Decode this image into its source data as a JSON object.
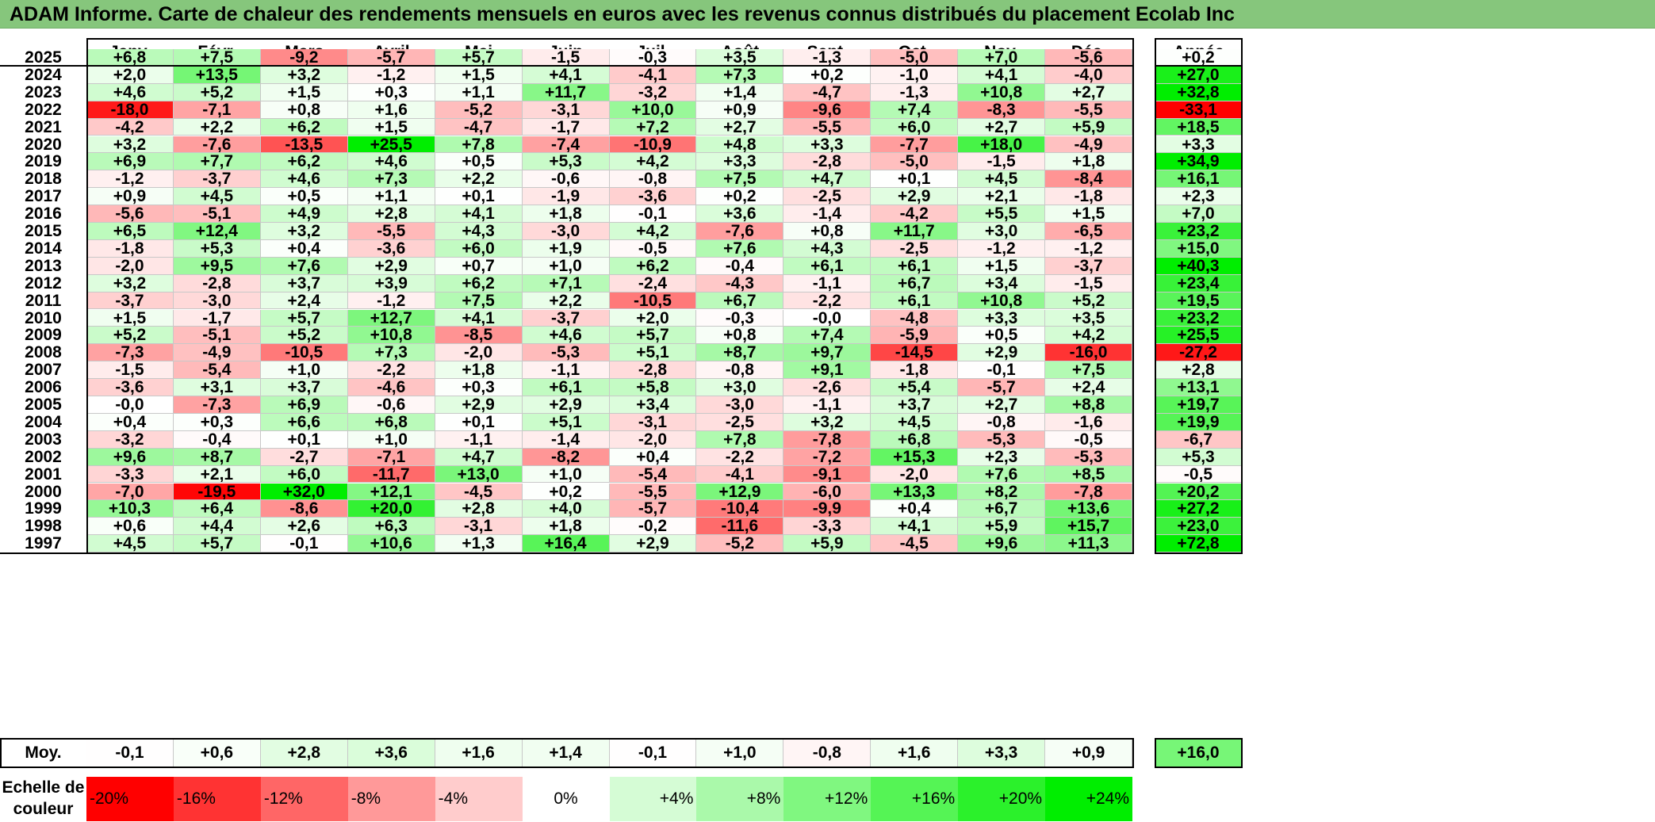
{
  "title": "ADAM Informe. Carte de chaleur des rendements mensuels en euros avec les revenus connus distribués du placement Ecolab Inc",
  "chart_data": {
    "type": "heatmap",
    "title": "ADAM Informe. Carte de chaleur des rendements mensuels en euros avec les revenus connus distribués du placement Ecolab Inc",
    "columns": [
      "Janv.",
      "Févr.",
      "Mars",
      "Avril",
      "Mai",
      "Juin",
      "Juil.",
      "Août",
      "Sept.",
      "Oct.",
      "Nov.",
      "Déc."
    ],
    "year_column": "Année",
    "rows": [
      {
        "year": "2025",
        "values": [
          "+6,8",
          "+7,5",
          "-9,2",
          "-5,7",
          "+5,7",
          "-1,5",
          "-0,3",
          "+3,5",
          "-1,3",
          "-5,0",
          "+7,0",
          "-5,6"
        ],
        "annual": "+0,2"
      },
      {
        "year": "2024",
        "values": [
          "+2,0",
          "+13,5",
          "+3,2",
          "-1,2",
          "+1,5",
          "+4,1",
          "-4,1",
          "+7,3",
          "+0,2",
          "-1,0",
          "+4,1",
          "-4,0"
        ],
        "annual": "+27,0"
      },
      {
        "year": "2023",
        "values": [
          "+4,6",
          "+5,2",
          "+1,5",
          "+0,3",
          "+1,1",
          "+11,7",
          "-3,2",
          "+1,4",
          "-4,7",
          "-1,3",
          "+10,8",
          "+2,7"
        ],
        "annual": "+32,8"
      },
      {
        "year": "2022",
        "values": [
          "-18,0",
          "-7,1",
          "+0,8",
          "+1,6",
          "-5,2",
          "-3,1",
          "+10,0",
          "+0,9",
          "-9,6",
          "+7,4",
          "-8,3",
          "-5,5"
        ],
        "annual": "-33,1"
      },
      {
        "year": "2021",
        "values": [
          "-4,2",
          "+2,2",
          "+6,2",
          "+1,5",
          "-4,7",
          "-1,7",
          "+7,2",
          "+2,7",
          "-5,5",
          "+6,0",
          "+2,7",
          "+5,9"
        ],
        "annual": "+18,5"
      },
      {
        "year": "2020",
        "values": [
          "+3,2",
          "-7,6",
          "-13,5",
          "+25,5",
          "+7,8",
          "-7,4",
          "-10,9",
          "+4,8",
          "+3,3",
          "-7,7",
          "+18,0",
          "-4,9"
        ],
        "annual": "+3,3"
      },
      {
        "year": "2019",
        "values": [
          "+6,9",
          "+7,7",
          "+6,2",
          "+4,6",
          "+0,5",
          "+5,3",
          "+4,2",
          "+3,3",
          "-2,8",
          "-5,0",
          "-1,5",
          "+1,8"
        ],
        "annual": "+34,9"
      },
      {
        "year": "2018",
        "values": [
          "-1,2",
          "-3,7",
          "+4,6",
          "+7,3",
          "+2,2",
          "-0,6",
          "-0,8",
          "+7,5",
          "+4,7",
          "+0,1",
          "+4,5",
          "-8,4"
        ],
        "annual": "+16,1"
      },
      {
        "year": "2017",
        "values": [
          "+0,9",
          "+4,5",
          "+0,5",
          "+1,1",
          "+0,1",
          "-1,9",
          "-3,6",
          "+0,2",
          "-2,5",
          "+2,9",
          "+2,1",
          "-1,8"
        ],
        "annual": "+2,3"
      },
      {
        "year": "2016",
        "values": [
          "-5,6",
          "-5,1",
          "+4,9",
          "+2,8",
          "+4,1",
          "+1,8",
          "-0,1",
          "+3,6",
          "-1,4",
          "-4,2",
          "+5,5",
          "+1,5"
        ],
        "annual": "+7,0"
      },
      {
        "year": "2015",
        "values": [
          "+6,5",
          "+12,4",
          "+3,2",
          "-5,5",
          "+4,3",
          "-3,0",
          "+4,2",
          "-7,6",
          "+0,8",
          "+11,7",
          "+3,0",
          "-6,5"
        ],
        "annual": "+23,2"
      },
      {
        "year": "2014",
        "values": [
          "-1,8",
          "+5,3",
          "+0,4",
          "-3,6",
          "+6,0",
          "+1,9",
          "-0,5",
          "+7,6",
          "+4,3",
          "-2,5",
          "-1,2",
          "-1,2"
        ],
        "annual": "+15,0"
      },
      {
        "year": "2013",
        "values": [
          "-2,0",
          "+9,5",
          "+7,6",
          "+2,9",
          "+0,7",
          "+1,0",
          "+6,2",
          "-0,4",
          "+6,1",
          "+6,1",
          "+1,5",
          "-3,7"
        ],
        "annual": "+40,3"
      },
      {
        "year": "2012",
        "values": [
          "+3,2",
          "-2,8",
          "+3,7",
          "+3,9",
          "+6,2",
          "+7,1",
          "-2,4",
          "-4,3",
          "-1,1",
          "+6,7",
          "+3,4",
          "-1,5"
        ],
        "annual": "+23,4"
      },
      {
        "year": "2011",
        "values": [
          "-3,7",
          "-3,0",
          "+2,4",
          "-1,2",
          "+7,5",
          "+2,2",
          "-10,5",
          "+6,7",
          "-2,2",
          "+6,1",
          "+10,8",
          "+5,2"
        ],
        "annual": "+19,5"
      },
      {
        "year": "2010",
        "values": [
          "+1,5",
          "-1,7",
          "+5,7",
          "+12,7",
          "+4,1",
          "-3,7",
          "+2,0",
          "-0,3",
          "-0,0",
          "-4,8",
          "+3,3",
          "+3,5"
        ],
        "annual": "+23,2"
      },
      {
        "year": "2009",
        "values": [
          "+5,2",
          "-5,1",
          "+5,2",
          "+10,8",
          "-8,5",
          "+4,6",
          "+5,7",
          "+0,8",
          "+7,4",
          "-5,9",
          "+0,5",
          "+4,2"
        ],
        "annual": "+25,5"
      },
      {
        "year": "2008",
        "values": [
          "-7,3",
          "-4,9",
          "-10,5",
          "+7,3",
          "-2,0",
          "-5,3",
          "+5,1",
          "+8,7",
          "+9,7",
          "-14,5",
          "+2,9",
          "-16,0"
        ],
        "annual": "-27,2"
      },
      {
        "year": "2007",
        "values": [
          "-1,5",
          "-5,4",
          "+1,0",
          "-2,2",
          "+1,8",
          "-1,1",
          "-2,8",
          "-0,8",
          "+9,1",
          "-1,8",
          "-0,1",
          "+7,5"
        ],
        "annual": "+2,8"
      },
      {
        "year": "2006",
        "values": [
          "-3,6",
          "+3,1",
          "+3,7",
          "-4,6",
          "+0,3",
          "+6,1",
          "+5,8",
          "+3,0",
          "-2,6",
          "+5,4",
          "-5,7",
          "+2,4"
        ],
        "annual": "+13,1"
      },
      {
        "year": "2005",
        "values": [
          "-0,0",
          "-7,3",
          "+6,9",
          "-0,6",
          "+2,9",
          "+2,9",
          "+3,4",
          "-3,0",
          "-1,1",
          "+3,7",
          "+2,7",
          "+8,8"
        ],
        "annual": "+19,7"
      },
      {
        "year": "2004",
        "values": [
          "+0,4",
          "+0,3",
          "+6,6",
          "+6,8",
          "+0,1",
          "+5,1",
          "-3,1",
          "-2,5",
          "+3,2",
          "+4,5",
          "-0,8",
          "-1,6"
        ],
        "annual": "+19,9"
      },
      {
        "year": "2003",
        "values": [
          "-3,2",
          "-0,4",
          "+0,1",
          "+1,0",
          "-1,1",
          "-1,4",
          "-2,0",
          "+7,8",
          "-7,8",
          "+6,8",
          "-5,3",
          "-0,5"
        ],
        "annual": "-6,7"
      },
      {
        "year": "2002",
        "values": [
          "+9,6",
          "+8,7",
          "-2,7",
          "-7,1",
          "+4,7",
          "-8,2",
          "+0,4",
          "-2,2",
          "-7,2",
          "+15,3",
          "+2,3",
          "-5,3"
        ],
        "annual": "+5,3"
      },
      {
        "year": "2001",
        "values": [
          "-3,3",
          "+2,1",
          "+6,0",
          "-11,7",
          "+13,0",
          "+1,0",
          "-5,4",
          "-4,1",
          "-9,1",
          "-2,0",
          "+7,6",
          "+8,5"
        ],
        "annual": "-0,5"
      },
      {
        "year": "2000",
        "values": [
          "-7,0",
          "-19,5",
          "+32,0",
          "+12,1",
          "-4,5",
          "+0,2",
          "-5,5",
          "+12,9",
          "-6,0",
          "+13,3",
          "+8,2",
          "-7,8"
        ],
        "annual": "+20,2"
      },
      {
        "year": "1999",
        "values": [
          "+10,3",
          "+6,4",
          "-8,6",
          "+20,0",
          "+2,8",
          "+4,0",
          "-5,7",
          "-10,4",
          "-9,9",
          "+0,4",
          "+6,7",
          "+13,6"
        ],
        "annual": "+27,2"
      },
      {
        "year": "1998",
        "values": [
          "+0,6",
          "+4,4",
          "+2,6",
          "+6,3",
          "-3,1",
          "+1,8",
          "-0,2",
          "-11,6",
          "-3,3",
          "+4,1",
          "+5,9",
          "+15,7"
        ],
        "annual": "+23,0"
      },
      {
        "year": "1997",
        "values": [
          "+4,5",
          "+5,7",
          "-0,1",
          "+10,6",
          "+1,3",
          "+16,4",
          "+2,9",
          "-5,2",
          "+5,9",
          "-4,5",
          "+9,6",
          "+11,3"
        ],
        "annual": "+72,8"
      }
    ],
    "average": {
      "label": "Moy.",
      "values": [
        "-0,1",
        "+0,6",
        "+2,8",
        "+3,6",
        "+1,6",
        "+1,4",
        "-0,1",
        "+1,0",
        "-0,8",
        "+1,6",
        "+3,3",
        "+0,9"
      ],
      "annual": "+16,0"
    },
    "scale": {
      "label_line1": "Echelle de",
      "label_line2": "couleur",
      "stops": [
        "-20%",
        "-16%",
        "-12%",
        "-8%",
        "-4%",
        "0%",
        "+4%",
        "+8%",
        "+12%",
        "+16%",
        "+20%",
        "+24%"
      ],
      "stop_values": [
        -20,
        -16,
        -12,
        -8,
        -4,
        0,
        4,
        8,
        12,
        16,
        20,
        24
      ]
    },
    "colors": {
      "negative": "#ff0000",
      "neutral": "#ffffff",
      "positive": "#00ee00"
    }
  }
}
